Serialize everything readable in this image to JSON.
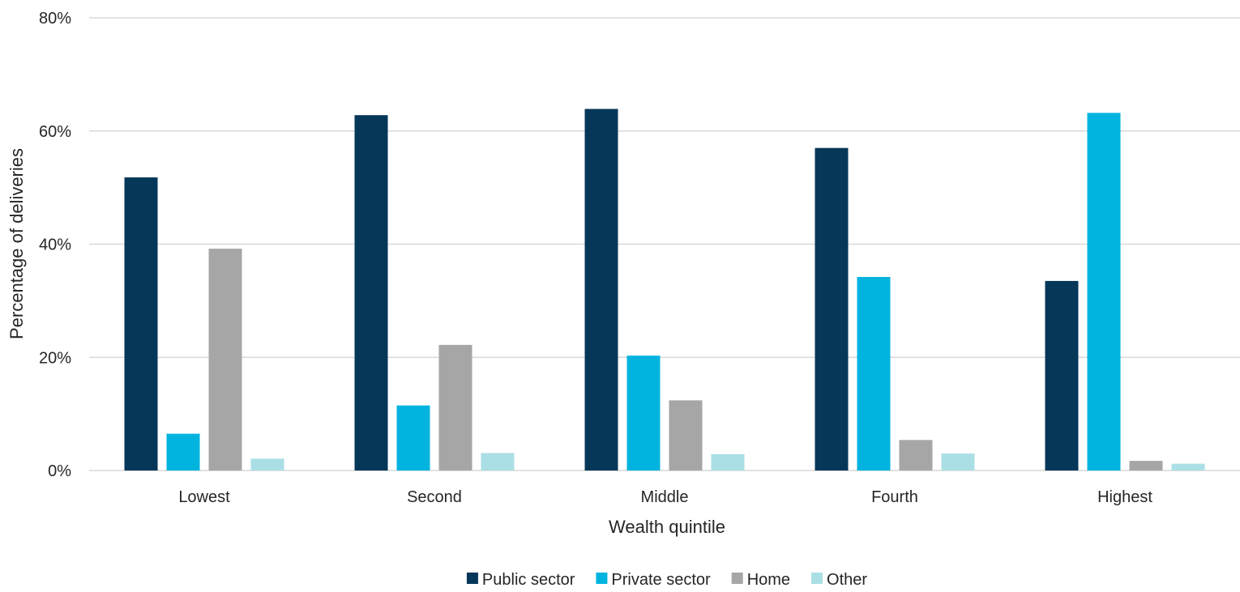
{
  "chart_data": {
    "type": "bar",
    "title": "",
    "xlabel": "Wealth quintile",
    "ylabel": "Percentage of deliveries",
    "categories": [
      "Lowest",
      "Second",
      "Middle",
      "Fourth",
      "Highest"
    ],
    "series": [
      {
        "name": "Public sector",
        "color": "#053759",
        "values": [
          51.8,
          62.8,
          63.9,
          57.0,
          33.5
        ]
      },
      {
        "name": "Private sector",
        "color": "#00B4DF",
        "values": [
          6.5,
          11.5,
          20.3,
          34.2,
          63.2
        ]
      },
      {
        "name": "Home",
        "color": "#A6A6A6",
        "values": [
          39.2,
          22.2,
          12.4,
          5.4,
          1.7
        ]
      },
      {
        "name": "Other",
        "color": "#ABDFE6",
        "values": [
          2.1,
          3.1,
          2.9,
          3.0,
          1.2
        ]
      }
    ],
    "ylim": [
      0,
      80
    ],
    "yticks": [
      {
        "value": 0,
        "label": "0%"
      },
      {
        "value": 20,
        "label": "20%"
      },
      {
        "value": 40,
        "label": "40%"
      },
      {
        "value": 60,
        "label": "60%"
      },
      {
        "value": 80,
        "label": "80%"
      }
    ],
    "grid": true,
    "legend_position": "bottom"
  }
}
